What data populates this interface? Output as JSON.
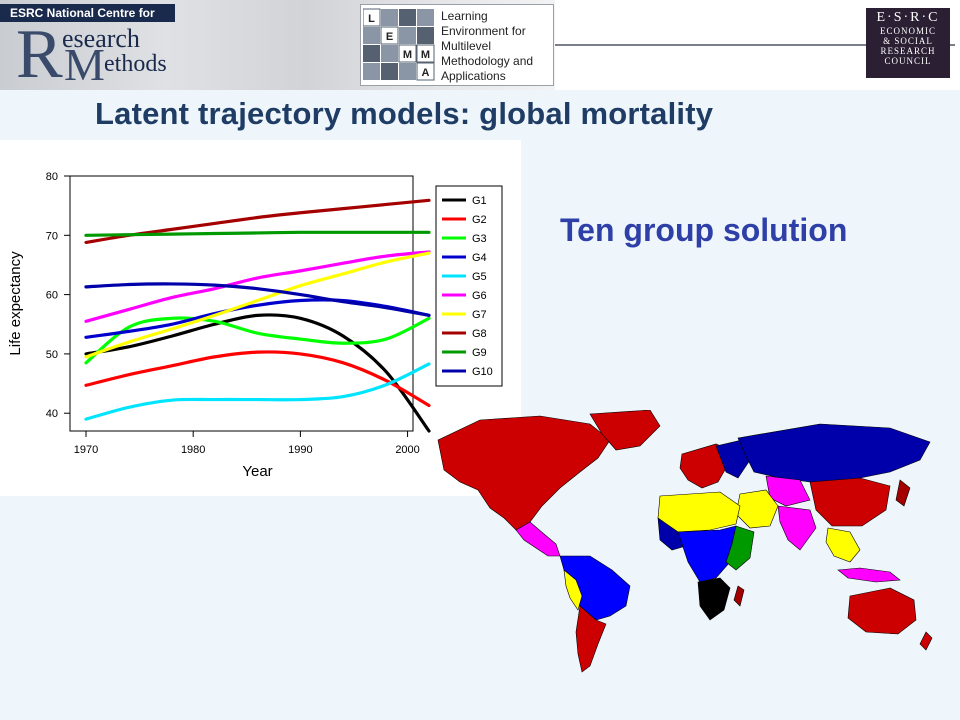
{
  "header": {
    "ncrm_top": "ESRC National Centre for",
    "ncrm_R": "R",
    "ncrm_word1": "esearch",
    "ncrm_M": "M",
    "ncrm_word2": "ethods",
    "lemma_letters": [
      "L",
      "E",
      "M",
      "M",
      "A"
    ],
    "lemma_lines": [
      "Learning",
      "Environment for",
      "Multilevel",
      "Methodology and",
      "Applications"
    ],
    "esrc_line1": "E·S·R·C",
    "esrc_lines": [
      "ECONOMIC",
      "& SOCIAL",
      "RESEARCH",
      "COUNCIL"
    ]
  },
  "slide": {
    "title": "Latent trajectory models: global mortality",
    "subtitle": "Ten group solution"
  },
  "chart_data": {
    "type": "line",
    "xlabel": "Year",
    "ylabel": "Life expectancy",
    "xlim": [
      1970,
      2002
    ],
    "ylim": [
      37,
      80
    ],
    "xticks": [
      1970,
      1980,
      1990,
      2000
    ],
    "yticks": [
      40,
      50,
      60,
      70,
      80
    ],
    "legend_position": "right",
    "x": [
      1970,
      1974,
      1978,
      1982,
      1986,
      1990,
      1994,
      1998,
      2002
    ],
    "series": [
      {
        "name": "G1",
        "color": "#000000",
        "values": [
          50.0,
          51.2,
          53.0,
          55.0,
          56.5,
          56.0,
          53.0,
          47.0,
          37.0
        ]
      },
      {
        "name": "G2",
        "color": "#ff0000",
        "values": [
          44.7,
          46.5,
          48.0,
          49.5,
          50.3,
          50.0,
          48.5,
          45.5,
          41.3
        ]
      },
      {
        "name": "G3",
        "color": "#00ff00",
        "values": [
          48.5,
          54.5,
          56.0,
          55.5,
          53.5,
          52.5,
          51.8,
          52.5,
          56.0
        ]
      },
      {
        "name": "G4",
        "color": "#0000cc",
        "values": [
          52.8,
          53.8,
          55.0,
          56.8,
          58.2,
          59.0,
          59.0,
          58.0,
          56.5
        ]
      },
      {
        "name": "G5",
        "color": "#00e5ff",
        "values": [
          39.0,
          41.0,
          42.2,
          42.3,
          42.3,
          42.3,
          42.8,
          44.8,
          48.3
        ]
      },
      {
        "name": "G6",
        "color": "#ff00ff",
        "values": [
          55.5,
          57.5,
          59.5,
          61.0,
          62.8,
          64.0,
          65.3,
          66.5,
          67.2
        ]
      },
      {
        "name": "G7",
        "color": "#ffff00",
        "values": [
          49.5,
          52.0,
          54.2,
          56.5,
          59.0,
          61.5,
          63.5,
          65.5,
          67.0
        ]
      },
      {
        "name": "G8",
        "color": "#a50000",
        "values": [
          68.8,
          70.0,
          71.0,
          72.0,
          73.0,
          73.8,
          74.5,
          75.2,
          75.9
        ]
      },
      {
        "name": "G9",
        "color": "#009900",
        "values": [
          70.0,
          70.1,
          70.2,
          70.3,
          70.4,
          70.5,
          70.5,
          70.5,
          70.5
        ]
      },
      {
        "name": "G10",
        "color": "#0000aa",
        "values": [
          61.3,
          61.7,
          61.8,
          61.6,
          61.0,
          60.0,
          58.8,
          57.8,
          56.5
        ]
      }
    ]
  },
  "map": {
    "description_colors": [
      "#cc0000",
      "#0000aa",
      "#ffff00",
      "#0000ff",
      "#ff00ff",
      "#000000",
      "#00ff00",
      "#a50000",
      "#009900"
    ]
  }
}
